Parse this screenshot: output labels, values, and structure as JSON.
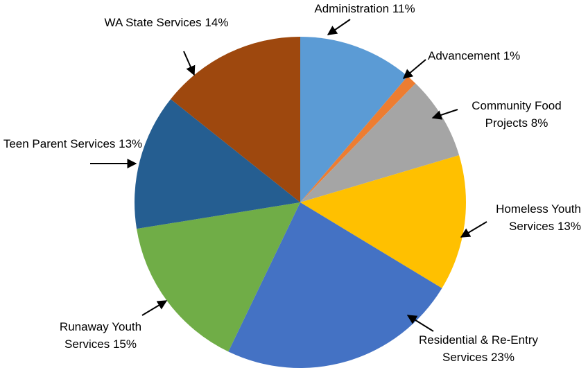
{
  "chart_data": {
    "type": "pie",
    "categories": [
      "Administration",
      "Advancement",
      "Community Food Projects",
      "Homeless Youth Services",
      "Residential & Re-Entry Services",
      "Runaway Youth Services",
      "Teen Parent Services",
      "WA State Services"
    ],
    "values": [
      11,
      1,
      8,
      13,
      23,
      15,
      13,
      14
    ],
    "value_labels": [
      "11%",
      "1%",
      "8%",
      "13%",
      "23%",
      "15%",
      "13%",
      "14%"
    ],
    "colors": [
      "#5b9bd5",
      "#ed7d31",
      "#a5a5a5",
      "#ffc000",
      "#4472c4",
      "#70ad47",
      "#255e91",
      "#9e480e"
    ]
  }
}
